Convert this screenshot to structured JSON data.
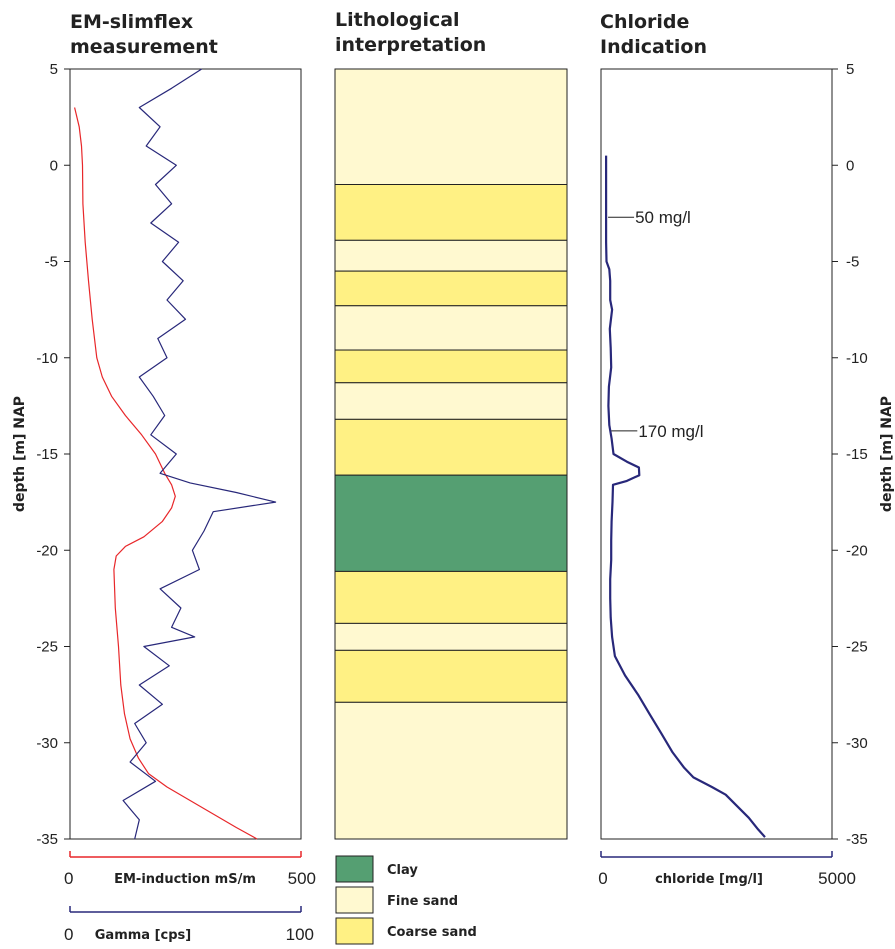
{
  "chart_data": [
    {
      "type": "line",
      "title_lines": [
        "EM-slimflex",
        "measurement"
      ],
      "ylabel": "depth [m] NAP",
      "ylim": [
        -35,
        5
      ],
      "yticks": [
        5,
        0,
        -5,
        -10,
        -15,
        -20,
        -25,
        -30,
        -35
      ],
      "colors": {
        "em": "#e8272a",
        "gamma": "#28287a"
      },
      "x_axes": [
        {
          "name": "EM-induction",
          "label": "EM-induction mS/m",
          "min": 0,
          "max": 500,
          "color": "#e8272a"
        },
        {
          "name": "Gamma",
          "label": "Gamma [cps]",
          "min": 0,
          "max": 100,
          "color": "#28287a"
        }
      ],
      "series": [
        {
          "name": "EM-induction",
          "x_units": "mS/m",
          "points": [
            [
              10,
              3
            ],
            [
              20,
              2
            ],
            [
              25,
              1
            ],
            [
              27,
              0
            ],
            [
              28,
              -2
            ],
            [
              33,
              -4
            ],
            [
              40,
              -6
            ],
            [
              48,
              -8
            ],
            [
              58,
              -10
            ],
            [
              70,
              -11
            ],
            [
              90,
              -12
            ],
            [
              120,
              -13
            ],
            [
              155,
              -14
            ],
            [
              185,
              -15
            ],
            [
              205,
              -16
            ],
            [
              220,
              -16.6
            ],
            [
              228,
              -17.2
            ],
            [
              220,
              -17.8
            ],
            [
              200,
              -18.5
            ],
            [
              160,
              -19.3
            ],
            [
              120,
              -19.8
            ],
            [
              100,
              -20.3
            ],
            [
              95,
              -21
            ],
            [
              98,
              -23
            ],
            [
              105,
              -25
            ],
            [
              110,
              -27
            ],
            [
              118,
              -28.5
            ],
            [
              130,
              -29.8
            ],
            [
              148,
              -30.8
            ],
            [
              170,
              -31.6
            ],
            [
              210,
              -32.3
            ],
            [
              260,
              -33
            ],
            [
              310,
              -33.7
            ],
            [
              360,
              -34.4
            ],
            [
              405,
              -35
            ]
          ]
        },
        {
          "name": "Gamma",
          "x_units": "cps",
          "points": [
            [
              57,
              5
            ],
            [
              44,
              4
            ],
            [
              30,
              3
            ],
            [
              39,
              2
            ],
            [
              33,
              1
            ],
            [
              46,
              0
            ],
            [
              37,
              -1
            ],
            [
              44,
              -2
            ],
            [
              35,
              -3
            ],
            [
              47,
              -4
            ],
            [
              40,
              -5
            ],
            [
              49,
              -6
            ],
            [
              42,
              -7
            ],
            [
              50,
              -8
            ],
            [
              38,
              -9
            ],
            [
              42,
              -10
            ],
            [
              30,
              -11
            ],
            [
              36,
              -12
            ],
            [
              41,
              -13
            ],
            [
              35,
              -14
            ],
            [
              46,
              -15
            ],
            [
              39,
              -16
            ],
            [
              52,
              -16.5
            ],
            [
              72,
              -17
            ],
            [
              89,
              -17.5
            ],
            [
              62,
              -18
            ],
            [
              58,
              -19
            ],
            [
              53,
              -20
            ],
            [
              56,
              -21
            ],
            [
              39,
              -22
            ],
            [
              48,
              -23
            ],
            [
              44,
              -24
            ],
            [
              54,
              -24.5
            ],
            [
              32,
              -25
            ],
            [
              43,
              -26
            ],
            [
              30,
              -27
            ],
            [
              40,
              -28
            ],
            [
              28,
              -29
            ],
            [
              33,
              -30
            ],
            [
              26,
              -31
            ],
            [
              37,
              -32
            ],
            [
              23,
              -33
            ],
            [
              30,
              -34
            ],
            [
              28,
              -35
            ]
          ]
        }
      ]
    },
    {
      "type": "bar",
      "title_lines": [
        "Lithological",
        "interpretation"
      ],
      "ylim": [
        -35,
        5
      ],
      "colors": {
        "Clay": "#559f72",
        "Fine sand": "#fff9d0",
        "Coarse sand": "#fff184"
      },
      "legend": [
        "Clay",
        "Fine sand",
        "Coarse sand"
      ],
      "layers": [
        {
          "top": 5,
          "bottom": -1,
          "lithology": "Fine sand"
        },
        {
          "top": -1,
          "bottom": -3.9,
          "lithology": "Coarse sand"
        },
        {
          "top": -3.9,
          "bottom": -5.5,
          "lithology": "Fine sand"
        },
        {
          "top": -5.5,
          "bottom": -7.3,
          "lithology": "Coarse sand"
        },
        {
          "top": -7.3,
          "bottom": -9.6,
          "lithology": "Fine sand"
        },
        {
          "top": -9.6,
          "bottom": -11.3,
          "lithology": "Coarse sand"
        },
        {
          "top": -11.3,
          "bottom": -13.2,
          "lithology": "Fine sand"
        },
        {
          "top": -13.2,
          "bottom": -16.1,
          "lithology": "Coarse sand"
        },
        {
          "top": -16.1,
          "bottom": -21.1,
          "lithology": "Clay"
        },
        {
          "top": -21.1,
          "bottom": -23.8,
          "lithology": "Coarse sand"
        },
        {
          "top": -23.8,
          "bottom": -25.2,
          "lithology": "Fine sand"
        },
        {
          "top": -25.2,
          "bottom": -27.9,
          "lithology": "Coarse sand"
        },
        {
          "top": -27.9,
          "bottom": -35,
          "lithology": "Fine sand"
        }
      ]
    },
    {
      "type": "line",
      "title_lines": [
        "Chloride",
        "Indication"
      ],
      "ylabel": "depth [m] NAP",
      "ylim": [
        -35,
        5
      ],
      "yticks": [
        5,
        0,
        -5,
        -10,
        -15,
        -20,
        -25,
        -30,
        -35
      ],
      "xlabel": "chloride [mg/l]",
      "xlim": [
        0,
        5000
      ],
      "color": "#28287a",
      "series": [
        {
          "name": "chloride",
          "x_units": "mg/l",
          "points": [
            [
              110,
              0.5
            ],
            [
              110,
              -2
            ],
            [
              110,
              -4
            ],
            [
              120,
              -5
            ],
            [
              180,
              -5.4
            ],
            [
              200,
              -6
            ],
            [
              200,
              -7
            ],
            [
              240,
              -7.5
            ],
            [
              190,
              -8.5
            ],
            [
              210,
              -9.5
            ],
            [
              220,
              -10.5
            ],
            [
              170,
              -11.5
            ],
            [
              160,
              -12.5
            ],
            [
              180,
              -13.5
            ],
            [
              230,
              -14.2
            ],
            [
              270,
              -15
            ],
            [
              560,
              -15.4
            ],
            [
              820,
              -15.7
            ],
            [
              830,
              -16.1
            ],
            [
              560,
              -16.4
            ],
            [
              260,
              -16.6
            ],
            [
              250,
              -17.5
            ],
            [
              230,
              -18.5
            ],
            [
              220,
              -19.5
            ],
            [
              220,
              -20.5
            ],
            [
              200,
              -21.5
            ],
            [
              200,
              -22.5
            ],
            [
              210,
              -23.5
            ],
            [
              240,
              -24.5
            ],
            [
              300,
              -25.5
            ],
            [
              520,
              -26.5
            ],
            [
              800,
              -27.5
            ],
            [
              1050,
              -28.5
            ],
            [
              1300,
              -29.5
            ],
            [
              1550,
              -30.5
            ],
            [
              1800,
              -31.3
            ],
            [
              2000,
              -31.8
            ],
            [
              2400,
              -32.3
            ],
            [
              2700,
              -32.7
            ],
            [
              2950,
              -33.3
            ],
            [
              3200,
              -33.9
            ],
            [
              3400,
              -34.5
            ],
            [
              3550,
              -34.9
            ]
          ]
        }
      ],
      "annotations": [
        {
          "text": "50 mg/l",
          "x": 110,
          "y": -2.7
        },
        {
          "text": "170 mg/l",
          "x": 180,
          "y": -13.8
        }
      ]
    }
  ]
}
